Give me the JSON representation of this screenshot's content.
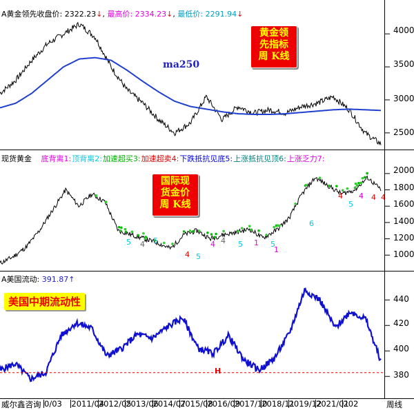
{
  "pane1": {
    "label": "A黄金领先收盘价:",
    "value": "2322.23",
    "high_label": "最高价:",
    "high_value": "2334.23",
    "low_label": "最低价:",
    "low_value": "2291.94",
    "arrow": "↓",
    "ma_label": "ma250",
    "badge_lines": [
      "黄金领",
      "先指标",
      "周 K线"
    ],
    "ticks": [
      "4000",
      "3500",
      "3000",
      "2500"
    ]
  },
  "pane2": {
    "label": "现货黄金",
    "legend": [
      {
        "text": "底背离1:",
        "color": "#e000e0"
      },
      {
        "text": "顶背离2:",
        "color": "#00c8e0"
      },
      {
        "text": "加速超买3:",
        "color": "#00b000"
      },
      {
        "text": "加速超卖4:",
        "color": "#e00000"
      },
      {
        "text": "下跌抵抗见底5:",
        "color": "#0000e0"
      },
      {
        "text": "上涨抵抗见顶6:",
        "color": "#008080"
      },
      {
        "text": "上涨乏力7:",
        "color": "#e000e0"
      }
    ],
    "badge_lines": [
      "国际现",
      "货金价",
      "周 K线"
    ],
    "ticks": [
      "2000",
      "1800",
      "1600",
      "1400",
      "1200",
      "1000"
    ]
  },
  "pane3": {
    "label": "A美国流动:",
    "value": "391.87",
    "arrow": "↑",
    "badge": "美国中期流动性",
    "h_marker": "H",
    "ticks": [
      "440",
      "420",
      "400",
      "380"
    ]
  },
  "footer": {
    "source": "威尔鑫咨询",
    "dates": [
      "0/03",
      "2011/04",
      "2012/05",
      "2013/06",
      "2014/07",
      "2015/08",
      "2016/09",
      "2017/10",
      "2018/11",
      "2019/12",
      "2021/01",
      "202"
    ],
    "period": "周线"
  },
  "chart_data": [
    {
      "type": "line",
      "title": "A黄金领先收盘价",
      "series": [
        {
          "name": "A黄金领先收盘价",
          "values": [
            3100,
            3300,
            3600,
            3850,
            4000,
            4150,
            3950,
            3500,
            3150,
            2950,
            2700,
            2500,
            2650,
            3050,
            2700,
            2900,
            2800,
            2850,
            2800,
            2900,
            2950,
            3050,
            2850,
            2500,
            2330
          ]
        },
        {
          "name": "ma250",
          "values": [
            2880,
            2950,
            3100,
            3300,
            3500,
            3620,
            3640,
            3600,
            3450,
            3280,
            3120,
            2980,
            2900,
            2860,
            2820,
            2790,
            2780,
            2780,
            2790,
            2810,
            2830,
            2850,
            2860,
            2850,
            2840
          ]
        }
      ],
      "ylim": [
        2300,
        4200
      ]
    },
    {
      "type": "line",
      "title": "现货黄金",
      "series": [
        {
          "name": "现货黄金",
          "values": [
            900,
            980,
            1100,
            1300,
            1550,
            1800,
            1600,
            1750,
            1650,
            1300,
            1250,
            1200,
            1150,
            1080,
            1250,
            1300,
            1200,
            1250,
            1280,
            1320,
            1210,
            1300,
            1450,
            1750,
            1950,
            1850,
            1750,
            1800,
            1950,
            1800
          ]
        }
      ],
      "ylim": [
        850,
        2100
      ]
    },
    {
      "type": "line",
      "title": "A美国流动",
      "series": [
        {
          "name": "A美国流动",
          "values": [
            385,
            390,
            378,
            383,
            412,
            422,
            418,
            396,
            402,
            413,
            410,
            419,
            426,
            402,
            398,
            412,
            393,
            385,
            394,
            414,
            448,
            440,
            418,
            431,
            425,
            392
          ]
        }
      ],
      "ylim": [
        365,
        458
      ]
    }
  ]
}
